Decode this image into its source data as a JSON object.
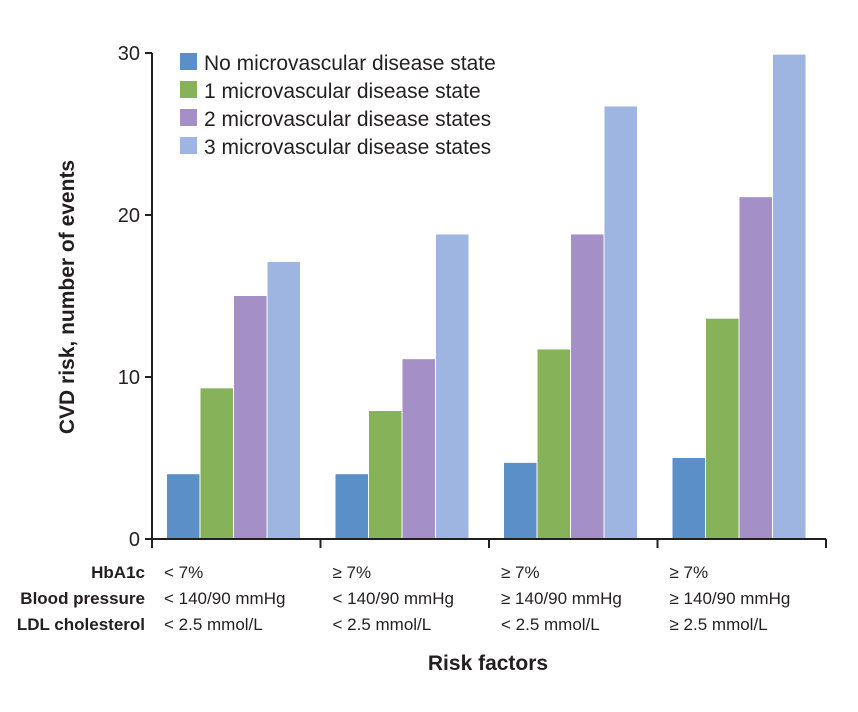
{
  "chart_data": {
    "type": "bar",
    "ylabel": "CVD risk, number of events",
    "xlabel": "Risk factors",
    "ylim": [
      0,
      30
    ],
    "yticks": [
      0,
      10,
      20,
      30
    ],
    "legend_placement": "top-left",
    "grid": false,
    "row_labels": [
      "HbA1c",
      "Blood pressure",
      "LDL cholesterol"
    ],
    "categories": [
      [
        "< 7%",
        "< 140/90 mmHg",
        "< 2.5 mmol/L"
      ],
      [
        "≥ 7%",
        "< 140/90 mmHg",
        "< 2.5 mmol/L"
      ],
      [
        "≥ 7%",
        "≥ 140/90 mmHg",
        "< 2.5 mmol/L"
      ],
      [
        "≥ 7%",
        "≥ 140/90 mmHg",
        "≥ 2.5 mmol/L"
      ]
    ],
    "series": [
      {
        "name": "No microvascular disease state",
        "color": "#5b8fc7",
        "values": [
          4.0,
          4.0,
          4.7,
          5.0
        ]
      },
      {
        "name": "1 microvascular disease state",
        "color": "#86b25a",
        "values": [
          9.3,
          7.9,
          11.7,
          13.6
        ]
      },
      {
        "name": "2 microvascular disease states",
        "color": "#a48fc6",
        "values": [
          15.0,
          11.1,
          18.8,
          21.1
        ]
      },
      {
        "name": "3 microvascular disease states",
        "color": "#9db5e0",
        "values": [
          17.1,
          18.8,
          26.7,
          29.9
        ]
      }
    ]
  }
}
